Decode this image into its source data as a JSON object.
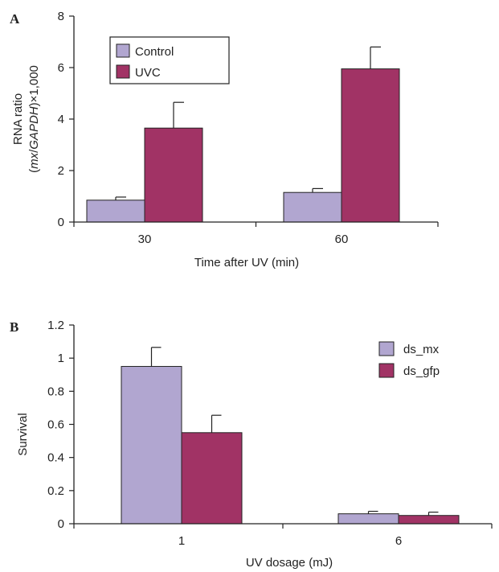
{
  "chart_data": [
    {
      "type": "bar",
      "panel": "A",
      "categories": [
        "30",
        "60"
      ],
      "series": [
        {
          "name": "Control",
          "values": [
            0.85,
            1.15
          ],
          "errors": [
            0.12,
            0.15
          ]
        },
        {
          "name": "UVC",
          "values": [
            3.65,
            5.95
          ],
          "errors": [
            1.0,
            0.85
          ]
        }
      ],
      "xlabel": "Time after UV (min)",
      "ylabel_line1": "RNA ratio",
      "ylabel_line2": "(mx/GAPDH)×1,000",
      "ylim": [
        0,
        8
      ],
      "yticks": [
        "0",
        "2",
        "4",
        "6",
        "8"
      ],
      "legend_position": "top-left",
      "grid": false
    },
    {
      "type": "bar",
      "panel": "B",
      "categories": [
        "1",
        "6"
      ],
      "series": [
        {
          "name": "ds_mx",
          "values": [
            0.95,
            0.06
          ],
          "errors": [
            0.115,
            0.015
          ]
        },
        {
          "name": "ds_gfp",
          "values": [
            0.55,
            0.05
          ],
          "errors": [
            0.105,
            0.02
          ]
        }
      ],
      "xlabel": "UV dosage (mJ)",
      "ylabel": "Survival",
      "ylim": [
        0,
        1.2
      ],
      "yticks": [
        "0",
        "0.2",
        "0.4",
        "0.6",
        "0.8",
        "1",
        "1.2"
      ],
      "legend_position": "top-right",
      "grid": false
    }
  ],
  "colors": {
    "series1": "#B1A6D0",
    "series2": "#A13365",
    "axis": "#222222"
  }
}
